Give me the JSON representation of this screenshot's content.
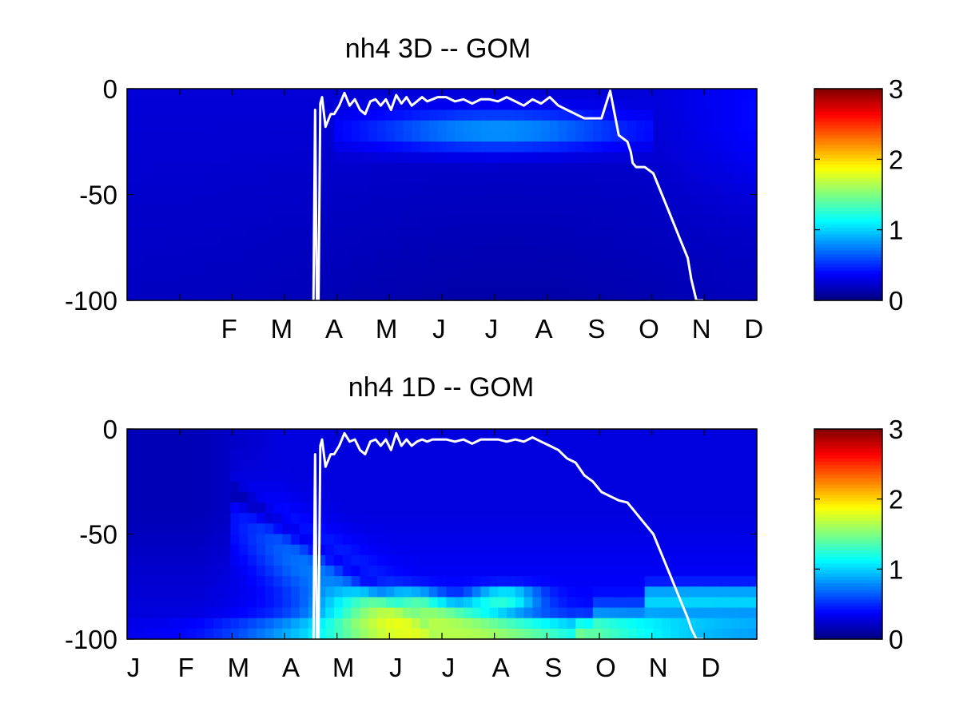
{
  "chart_data": [
    {
      "type": "heatmap",
      "title": "nh4 3D   -- GOM",
      "ylim": [
        -100,
        0
      ],
      "yticks": [
        "0",
        "-50",
        "-100"
      ],
      "xtick_labels": [
        "F",
        "M",
        "A",
        "M",
        "J",
        "J",
        "A",
        "S",
        "O",
        "N",
        "D"
      ],
      "colorbar": {
        "range": [
          0,
          3
        ],
        "tick_labels": [
          "0",
          "1",
          "2",
          "3"
        ],
        "colormap": "jet"
      },
      "line": {
        "color": "#ffffff",
        "day": [
          108,
          109,
          110,
          111,
          112,
          113,
          115,
          118,
          120,
          123,
          126,
          129,
          132,
          135,
          138,
          141,
          144,
          147,
          150,
          153,
          156,
          159,
          162,
          165,
          168,
          171,
          174,
          177,
          180,
          185,
          190,
          195,
          200,
          205,
          210,
          215,
          220,
          225,
          230,
          235,
          240,
          245,
          250,
          255,
          260,
          265,
          270,
          275,
          280,
          285,
          290,
          292,
          293,
          295,
          297,
          300,
          305,
          310,
          315,
          320,
          325,
          327,
          330,
          332,
          334
        ],
        "depth": [
          -100,
          -10,
          -100,
          -100,
          -7,
          -4,
          -18,
          -12,
          -12,
          -8,
          -2,
          -8,
          -5,
          -10,
          -12,
          -6,
          -5,
          -8,
          -5,
          -10,
          -3,
          -7,
          -4,
          -8,
          -6,
          -4,
          -6,
          -5,
          -4,
          -4,
          -6,
          -5,
          -7,
          -5,
          -5,
          -6,
          -4,
          -6,
          -8,
          -5,
          -7,
          -4,
          -8,
          -10,
          -12,
          -14,
          -14,
          -14,
          -1,
          -22,
          -25,
          -30,
          -35,
          -37,
          -37,
          -37,
          -40,
          -50,
          -60,
          -70,
          -80,
          -90,
          -100,
          -100,
          -100
        ]
      }
    },
    {
      "type": "heatmap",
      "title": "nh4 1D   -- GOM",
      "ylim": [
        -100,
        0
      ],
      "yticks": [
        "0",
        "-50",
        "-100"
      ],
      "xtick_labels": [
        "J",
        "F",
        "M",
        "A",
        "M",
        "J",
        "J",
        "A",
        "S",
        "O",
        "N",
        "D"
      ],
      "colorbar": {
        "range": [
          0,
          3
        ],
        "tick_labels": [
          "0",
          "1",
          "2",
          "3"
        ],
        "colormap": "jet"
      },
      "line": {
        "color": "#ffffff",
        "day": [
          108,
          109,
          110,
          111,
          112,
          113,
          115,
          118,
          120,
          123,
          126,
          129,
          132,
          135,
          138,
          141,
          144,
          147,
          150,
          153,
          156,
          159,
          162,
          165,
          168,
          171,
          174,
          177,
          180,
          185,
          190,
          195,
          200,
          205,
          210,
          215,
          220,
          225,
          230,
          235,
          240,
          245,
          250,
          255,
          260,
          265,
          270,
          275,
          280,
          285,
          290,
          292,
          293,
          295,
          297,
          300,
          305,
          310,
          315,
          320,
          325,
          327,
          330,
          332,
          334
        ],
        "depth": [
          -100,
          -12,
          -100,
          -100,
          -8,
          -5,
          -18,
          -12,
          -12,
          -8,
          -2,
          -6,
          -5,
          -10,
          -12,
          -6,
          -5,
          -8,
          -5,
          -10,
          -2,
          -8,
          -5,
          -8,
          -6,
          -5,
          -6,
          -5,
          -5,
          -5,
          -6,
          -5,
          -7,
          -5,
          -5,
          -5,
          -6,
          -5,
          -6,
          -4,
          -6,
          -8,
          -10,
          -14,
          -16,
          -22,
          -25,
          -30,
          -32,
          -34,
          -35,
          -37,
          -38,
          -40,
          -42,
          -45,
          -50,
          -60,
          -70,
          -80,
          -90,
          -95,
          -100,
          -100,
          -100
        ]
      }
    }
  ]
}
